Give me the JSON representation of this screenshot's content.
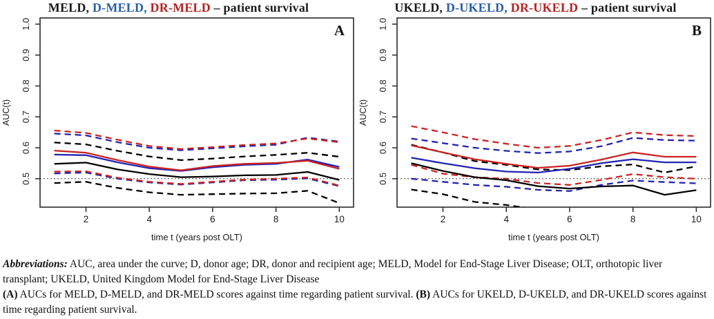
{
  "figure": {
    "caption": {
      "abbrev_label": "Abbreviations:",
      "abbrev_text": " AUC, area under the curve; D, donor age; DR, donor and recipient age; MELD, Model for End-Stage Liver Disease; OLT, orthotopic liver transplant; UKELD, United Kingdom Model for End-Stage Liver Disease",
      "a_label": "(A)",
      "a_text": " AUCs for MELD, D-MELD, and DR-MELD scores against time regarding patient survival. ",
      "b_label": "(B)",
      "b_text": " AUCs for UKELD, D-UKELD, and DR-UKELD scores against time regarding patient survival."
    }
  },
  "chart_data": [
    {
      "type": "line",
      "panel_label": "A",
      "title_parts": [
        {
          "text": "MELD,",
          "color": "#1a1a1a"
        },
        {
          "text": " D-MELD,",
          "color": "#2b5fa5"
        },
        {
          "text": " DR-MELD",
          "color": "#b52222"
        },
        {
          "text": " – patient survival",
          "color": "#1a1a1a"
        }
      ],
      "xlabel": "time t (years post OLT)",
      "ylabel": "AUC(t)",
      "x": [
        1,
        2,
        3,
        4,
        5,
        6,
        7,
        8,
        9,
        10
      ],
      "xticks": [
        2,
        4,
        6,
        8,
        10
      ],
      "yticks": [
        0.5,
        0.6,
        0.7,
        0.8,
        0.9,
        1.0
      ],
      "xlim": [
        0.55,
        10.45
      ],
      "ylim": [
        0.408,
        1.02
      ],
      "grid": false,
      "legend": "none (color-coded in title)",
      "reference_line": 0.5,
      "series": [
        {
          "name": "MELD",
          "color": "#000000",
          "style": "solid",
          "values": [
            0.548,
            0.552,
            0.53,
            0.515,
            0.505,
            0.507,
            0.511,
            0.512,
            0.522,
            0.496
          ]
        },
        {
          "name": "D-MELD",
          "color": "#2222b2",
          "style": "solid",
          "values": [
            0.578,
            0.576,
            0.553,
            0.534,
            0.525,
            0.537,
            0.545,
            0.548,
            0.562,
            0.538
          ]
        },
        {
          "name": "DR-MELD",
          "color": "#cc2222",
          "style": "solid",
          "values": [
            0.591,
            0.584,
            0.56,
            0.539,
            0.527,
            0.541,
            0.548,
            0.551,
            0.558,
            0.532
          ]
        },
        {
          "name": "MELD upper 95% CI",
          "color": "#000000",
          "style": "dashed",
          "values": [
            0.617,
            0.611,
            0.59,
            0.572,
            0.56,
            0.565,
            0.572,
            0.577,
            0.584,
            0.571
          ]
        },
        {
          "name": "D-MELD upper 95% CI",
          "color": "#2222b2",
          "style": "dashed",
          "values": [
            0.646,
            0.64,
            0.618,
            0.6,
            0.592,
            0.598,
            0.605,
            0.61,
            0.633,
            0.62
          ]
        },
        {
          "name": "DR-MELD upper 95% CI",
          "color": "#cc2222",
          "style": "dashed",
          "values": [
            0.656,
            0.648,
            0.626,
            0.606,
            0.596,
            0.602,
            0.609,
            0.614,
            0.63,
            0.618
          ]
        },
        {
          "name": "MELD lower 95% CI",
          "color": "#000000",
          "style": "dashed",
          "values": [
            0.486,
            0.49,
            0.47,
            0.456,
            0.448,
            0.45,
            0.452,
            0.453,
            0.461,
            0.421
          ]
        },
        {
          "name": "D-MELD lower 95% CI",
          "color": "#2222b2",
          "style": "dashed",
          "values": [
            0.517,
            0.52,
            0.5,
            0.488,
            0.481,
            0.488,
            0.495,
            0.497,
            0.501,
            0.476
          ]
        },
        {
          "name": "DR-MELD lower 95% CI",
          "color": "#cc2222",
          "style": "dashed",
          "values": [
            0.523,
            0.524,
            0.503,
            0.49,
            0.483,
            0.49,
            0.497,
            0.5,
            0.504,
            0.478
          ]
        }
      ]
    },
    {
      "type": "line",
      "panel_label": "B",
      "title_parts": [
        {
          "text": "UKELD,",
          "color": "#1a1a1a"
        },
        {
          "text": " D-UKELD,",
          "color": "#2b5fa5"
        },
        {
          "text": " DR-UKELD",
          "color": "#b52222"
        },
        {
          "text": " – patient survival",
          "color": "#1a1a1a"
        }
      ],
      "xlabel": "time t (years post OLT)",
      "ylabel": "AUC(t)",
      "x": [
        1,
        2,
        3,
        4,
        5,
        6,
        7,
        8,
        9,
        10
      ],
      "xticks": [
        2,
        4,
        6,
        8,
        10
      ],
      "yticks": [
        0.5,
        0.6,
        0.7,
        0.8,
        0.9,
        1.0
      ],
      "xlim": [
        0.55,
        10.45
      ],
      "ylim": [
        0.408,
        1.02
      ],
      "grid": false,
      "legend": "none (color-coded in title)",
      "reference_line": 0.5,
      "series": [
        {
          "name": "UKELD",
          "color": "#000000",
          "style": "solid",
          "values": [
            0.55,
            0.525,
            0.505,
            0.495,
            0.476,
            0.468,
            0.475,
            0.478,
            0.448,
            0.463
          ]
        },
        {
          "name": "D-UKELD",
          "color": "#2222b2",
          "style": "solid",
          "values": [
            0.568,
            0.55,
            0.534,
            0.523,
            0.52,
            0.532,
            0.55,
            0.563,
            0.553,
            0.553
          ]
        },
        {
          "name": "DR-UKELD",
          "color": "#cc2222",
          "style": "solid",
          "values": [
            0.608,
            0.585,
            0.563,
            0.548,
            0.535,
            0.542,
            0.562,
            0.585,
            0.571,
            0.571
          ]
        },
        {
          "name": "UKELD upper 95% CI",
          "color": "#000000",
          "style": "dashed",
          "values": [
            0.61,
            0.585,
            0.557,
            0.545,
            0.53,
            0.528,
            0.54,
            0.546,
            0.52,
            0.54
          ]
        },
        {
          "name": "D-UKELD upper 95% CI",
          "color": "#2222b2",
          "style": "dashed",
          "values": [
            0.63,
            0.615,
            0.6,
            0.59,
            0.583,
            0.588,
            0.605,
            0.632,
            0.625,
            0.623
          ]
        },
        {
          "name": "DR-UKELD upper 95% CI",
          "color": "#cc2222",
          "style": "dashed",
          "values": [
            0.67,
            0.65,
            0.628,
            0.613,
            0.6,
            0.606,
            0.625,
            0.65,
            0.641,
            0.638
          ]
        },
        {
          "name": "UKELD lower 95% CI",
          "color": "#000000",
          "style": "dashed",
          "values": [
            0.465,
            0.45,
            0.425,
            0.415,
            0.4,
            0.398,
            0.398,
            0.398,
            0.39,
            0.398
          ]
        },
        {
          "name": "D-UKELD lower 95% CI",
          "color": "#2222b2",
          "style": "dashed",
          "values": [
            0.5,
            0.49,
            0.48,
            0.474,
            0.464,
            0.46,
            0.48,
            0.494,
            0.489,
            0.485
          ]
        },
        {
          "name": "DR-UKELD lower 95% CI",
          "color": "#cc2222",
          "style": "dashed",
          "values": [
            0.545,
            0.516,
            0.505,
            0.5,
            0.486,
            0.48,
            0.496,
            0.515,
            0.505,
            0.5
          ]
        }
      ]
    }
  ]
}
